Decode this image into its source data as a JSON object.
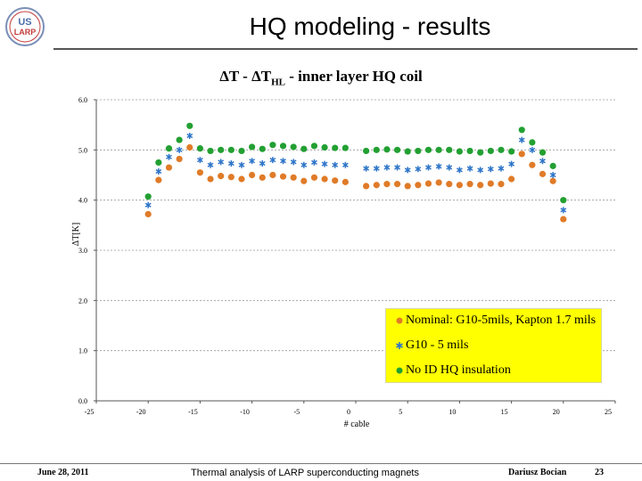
{
  "slide": {
    "title": "HQ modeling - results",
    "logo_text_top": "US",
    "logo_text_bottom": "LARP"
  },
  "footer": {
    "date": "June 28, 2011",
    "center": "Thermal analysis of LARP superconducting magnets",
    "author": "Dariusz Bocian",
    "page": "23"
  },
  "colors": {
    "nominal": "#e07b28",
    "g10": "#2e75c8",
    "no_id": "#22a032",
    "legend_bg": "#ffff00",
    "grid": "#9a9a9a"
  },
  "chart_data": {
    "type": "scatter",
    "title_main": "ΔT - ΔT",
    "title_sub": "HL",
    "title_tail": " - inner layer HQ coil",
    "xlabel": "# cable",
    "ylabel": "ΔT[K]",
    "xlim": [
      -25,
      25
    ],
    "ylim": [
      0,
      6
    ],
    "x_ticks": [
      "-25",
      "-20",
      "-15",
      "-10",
      "-5",
      "0",
      "5",
      "10",
      "15",
      "20",
      "25"
    ],
    "y_ticks": [
      "0.0",
      "1.0",
      "2.0",
      "3.0",
      "4.0",
      "5.0",
      "6.0"
    ],
    "grid": "horizontal",
    "legend_position": "bottom-right",
    "series": [
      {
        "name": "Nominal: G10-5mils, Kapton 1.7 mils",
        "marker": "circle",
        "x": [
          -20,
          -19,
          -18,
          -17,
          -16,
          -15,
          -14,
          -13,
          -12,
          -11,
          -10,
          -9,
          -8,
          -7,
          -6,
          -5,
          -4,
          -3,
          -2,
          -1,
          1,
          2,
          3,
          4,
          5,
          6,
          7,
          8,
          9,
          10,
          11,
          12,
          13,
          14,
          15,
          16,
          17,
          18,
          19,
          20
        ],
        "y": [
          3.72,
          4.4,
          4.65,
          4.82,
          5.05,
          4.55,
          4.42,
          4.48,
          4.46,
          4.42,
          4.5,
          4.45,
          4.5,
          4.47,
          4.45,
          4.38,
          4.45,
          4.42,
          4.39,
          4.36,
          4.28,
          4.3,
          4.32,
          4.32,
          4.28,
          4.3,
          4.33,
          4.35,
          4.32,
          4.3,
          4.32,
          4.3,
          4.33,
          4.32,
          4.42,
          4.92,
          4.7,
          4.52,
          4.38,
          3.62
        ]
      },
      {
        "name": "G10 - 5 mils",
        "marker": "star",
        "x": [
          -20,
          -19,
          -18,
          -17,
          -16,
          -15,
          -14,
          -13,
          -12,
          -11,
          -10,
          -9,
          -8,
          -7,
          -6,
          -5,
          -4,
          -3,
          -2,
          -1,
          1,
          2,
          3,
          4,
          5,
          6,
          7,
          8,
          9,
          10,
          11,
          12,
          13,
          14,
          15,
          16,
          17,
          18,
          19,
          20
        ],
        "y": [
          3.9,
          4.57,
          4.86,
          5.0,
          5.28,
          4.8,
          4.7,
          4.76,
          4.73,
          4.7,
          4.78,
          4.73,
          4.8,
          4.78,
          4.76,
          4.7,
          4.75,
          4.72,
          4.7,
          4.7,
          4.63,
          4.63,
          4.65,
          4.65,
          4.6,
          4.62,
          4.65,
          4.67,
          4.65,
          4.6,
          4.63,
          4.6,
          4.62,
          4.63,
          4.72,
          5.2,
          5.0,
          4.78,
          4.5,
          3.8
        ]
      },
      {
        "name": "No ID HQ insulation",
        "marker": "circle",
        "x": [
          -20,
          -19,
          -18,
          -17,
          -16,
          -15,
          -14,
          -13,
          -12,
          -11,
          -10,
          -9,
          -8,
          -7,
          -6,
          -5,
          -4,
          -3,
          -2,
          -1,
          1,
          2,
          3,
          4,
          5,
          6,
          7,
          8,
          9,
          10,
          11,
          12,
          13,
          14,
          15,
          16,
          17,
          18,
          19,
          20
        ],
        "y": [
          4.07,
          4.75,
          5.03,
          5.2,
          5.48,
          5.03,
          4.98,
          5.0,
          5.0,
          4.98,
          5.06,
          5.02,
          5.1,
          5.08,
          5.06,
          5.02,
          5.08,
          5.05,
          5.04,
          5.04,
          4.98,
          5.0,
          5.01,
          5.0,
          4.97,
          4.98,
          5.0,
          5.0,
          5.0,
          4.97,
          4.98,
          4.95,
          4.98,
          5.0,
          4.97,
          5.4,
          5.15,
          4.95,
          4.68,
          4.0
        ]
      }
    ]
  }
}
